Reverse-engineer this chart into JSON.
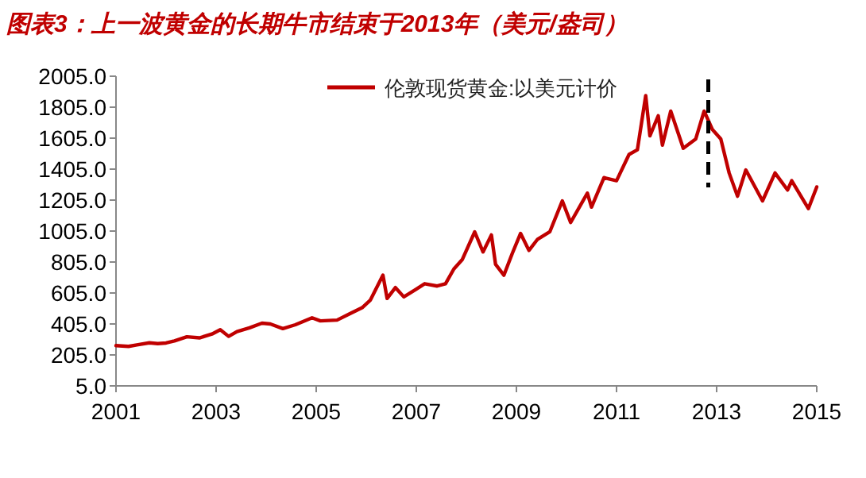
{
  "chart_data": {
    "type": "line",
    "title": "图表3：上一波黄金的长期牛市结束于2013年（美元/盎司）",
    "x": [
      "2001-01",
      "2001-04",
      "2001-06",
      "2001-09",
      "2001-11",
      "2002-01",
      "2002-03",
      "2002-06",
      "2002-09",
      "2002-12",
      "2003-02",
      "2003-04",
      "2003-06",
      "2003-09",
      "2003-12",
      "2004-02",
      "2004-05",
      "2004-08",
      "2004-12",
      "2005-02",
      "2005-06",
      "2005-09",
      "2005-12",
      "2006-02",
      "2006-05",
      "2006-06",
      "2006-08",
      "2006-10",
      "2007-01",
      "2007-03",
      "2007-06",
      "2007-08",
      "2007-10",
      "2007-12",
      "2008-03",
      "2008-05",
      "2008-07",
      "2008-08",
      "2008-10",
      "2008-12",
      "2009-02",
      "2009-04",
      "2009-06",
      "2009-09",
      "2009-12",
      "2010-02",
      "2010-06",
      "2010-07",
      "2010-10",
      "2011-01",
      "2011-04",
      "2011-06",
      "2011-08",
      "2011-09",
      "2011-11",
      "2011-12",
      "2012-02",
      "2012-05",
      "2012-08",
      "2012-10",
      "2012-12",
      "2013-02",
      "2013-04",
      "2013-06",
      "2013-08",
      "2013-12",
      "2014-03",
      "2014-06",
      "2014-07",
      "2014-11",
      "2015-01"
    ],
    "series": [
      {
        "name": "伦敦现货黄金:以美元计价",
        "color": "#c00000",
        "values": [
          265,
          260,
          270,
          283,
          278,
          282,
          295,
          322,
          315,
          340,
          368,
          325,
          356,
          380,
          410,
          405,
          375,
          400,
          445,
          425,
          430,
          470,
          510,
          560,
          720,
          570,
          640,
          580,
          630,
          665,
          650,
          665,
          760,
          820,
          1000,
          870,
          980,
          790,
          720,
          860,
          990,
          880,
          950,
          1000,
          1200,
          1060,
          1250,
          1160,
          1350,
          1330,
          1500,
          1530,
          1880,
          1620,
          1750,
          1560,
          1780,
          1540,
          1600,
          1780,
          1660,
          1600,
          1380,
          1230,
          1400,
          1200,
          1380,
          1270,
          1330,
          1150,
          1290
        ]
      }
    ],
    "xlim": [
      "2001-01",
      "2015-01"
    ],
    "xticks": [
      "2001",
      "2003",
      "2005",
      "2007",
      "2009",
      "2011",
      "2013",
      "2015"
    ],
    "ylim": [
      5,
      2005
    ],
    "yticks": [
      {
        "value": 5,
        "label": "5.0"
      },
      {
        "value": 205,
        "label": "205.0"
      },
      {
        "value": 405,
        "label": "405.0"
      },
      {
        "value": 605,
        "label": "605.0"
      },
      {
        "value": 805,
        "label": "805.0"
      },
      {
        "value": 1005,
        "label": "1005.0"
      },
      {
        "value": 1205,
        "label": "1205.0"
      },
      {
        "value": 1405,
        "label": "1405.0"
      },
      {
        "value": 1605,
        "label": "1605.0"
      },
      {
        "value": 1805,
        "label": "1805.0"
      },
      {
        "value": 2005,
        "label": "2005.0"
      }
    ],
    "ref_lines": [
      {
        "axis": "x",
        "value": "2012-11",
        "line_style": "dashed",
        "color": "#000000"
      }
    ],
    "legend": "top right",
    "grid": false,
    "marker": "none",
    "line_style": "solid"
  }
}
